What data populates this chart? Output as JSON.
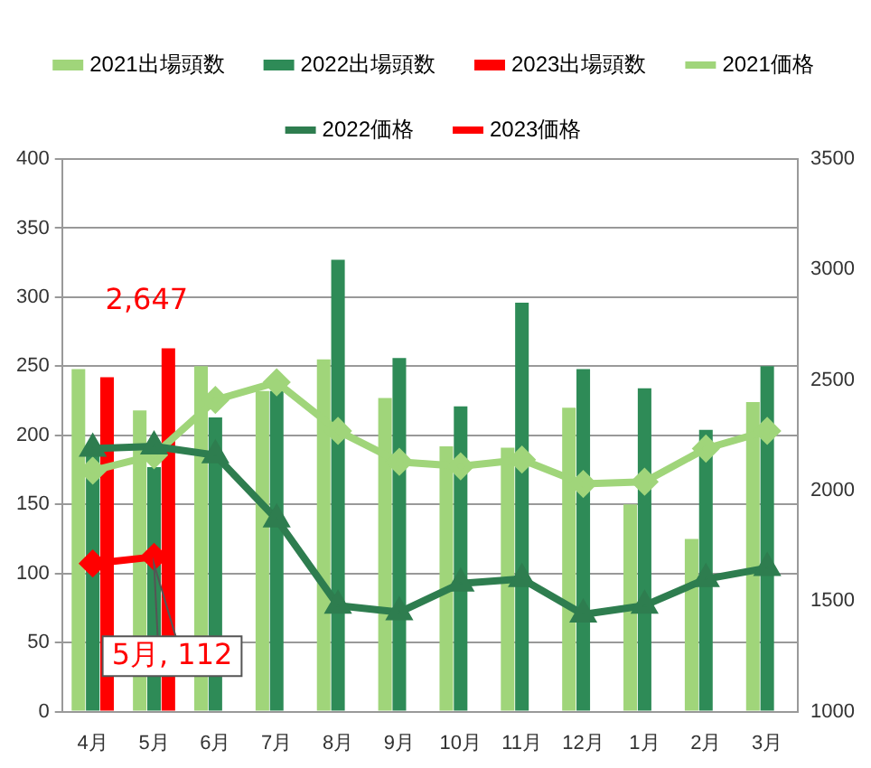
{
  "chart_data": {
    "type": "bar",
    "categories": [
      "4月",
      "5月",
      "6月",
      "7月",
      "8月",
      "9月",
      "10月",
      "11月",
      "12月",
      "1月",
      "2月",
      "3月"
    ],
    "series": [
      {
        "name": "2021出場頭数",
        "color": "#a0d57a",
        "values": [
          248,
          218,
          250,
          232,
          255,
          227,
          192,
          191,
          220,
          150,
          125,
          224
        ]
      },
      {
        "name": "2022出場頭数",
        "color": "#2e8b57",
        "values": [
          185,
          177,
          213,
          232,
          327,
          256,
          221,
          296,
          248,
          234,
          204,
          250
        ]
      },
      {
        "name": "2023出場頭数",
        "color": "#ff0000",
        "values": [
          242,
          263,
          null,
          null,
          null,
          null,
          null,
          null,
          null,
          null,
          null,
          null
        ]
      },
      {
        "name": "2021価格",
        "type": "line",
        "axis": "y2",
        "marker": "diamond",
        "color": "#a0d57a",
        "values": [
          2090,
          2160,
          2410,
          2490,
          2270,
          2130,
          2110,
          2140,
          2030,
          2040,
          2190,
          2270
        ]
      },
      {
        "name": "2022価格",
        "type": "line",
        "axis": "y2",
        "marker": "triangle",
        "color": "#2e7d4f",
        "values": [
          2190,
          2200,
          2160,
          1870,
          1480,
          1450,
          1580,
          1600,
          1440,
          1480,
          1600,
          1650
        ]
      },
      {
        "name": "2023価格",
        "type": "line",
        "axis": "y2",
        "marker": "diamond",
        "color": "#ff0000",
        "values": [
          1670,
          1700,
          null,
          null,
          null,
          null,
          null,
          null,
          null,
          null,
          null,
          null
        ]
      }
    ],
    "ylim": [
      0,
      400
    ],
    "yticks": [
      0,
      50,
      100,
      150,
      200,
      250,
      300,
      350,
      400
    ],
    "y2lim": [
      1000,
      3500
    ],
    "y2ticks": [
      1000,
      1500,
      2000,
      2500,
      3000,
      3500
    ],
    "annotations": [
      "2,647",
      "5月, 112"
    ],
    "grid": "y",
    "legend": "top"
  }
}
